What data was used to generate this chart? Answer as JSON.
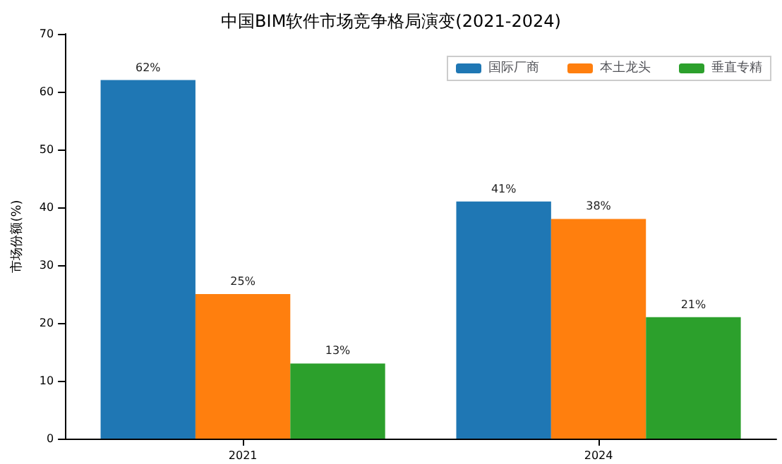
{
  "chart_data": {
    "type": "bar",
    "title": "中国BIM软件市场竞争格局演变(2021-2024)",
    "ylabel": "市场份额(%)",
    "categories": [
      "2021",
      "2024"
    ],
    "series": [
      {
        "name": "国际厂商",
        "color": "#1f77b4",
        "values": [
          62,
          41
        ],
        "value_labels": [
          "62%",
          "41%"
        ]
      },
      {
        "name": "本土龙头",
        "color": "#ff7f0e",
        "values": [
          25,
          38
        ],
        "value_labels": [
          "25%",
          "38%"
        ]
      },
      {
        "name": "垂直专精",
        "color": "#2ca02c",
        "values": [
          13,
          21
        ],
        "value_labels": [
          "13%",
          "21%"
        ]
      }
    ],
    "ylim": [
      0,
      70
    ],
    "yticks": [
      0,
      10,
      20,
      30,
      40,
      50,
      60,
      70
    ],
    "grid": false,
    "legend": "top right"
  }
}
